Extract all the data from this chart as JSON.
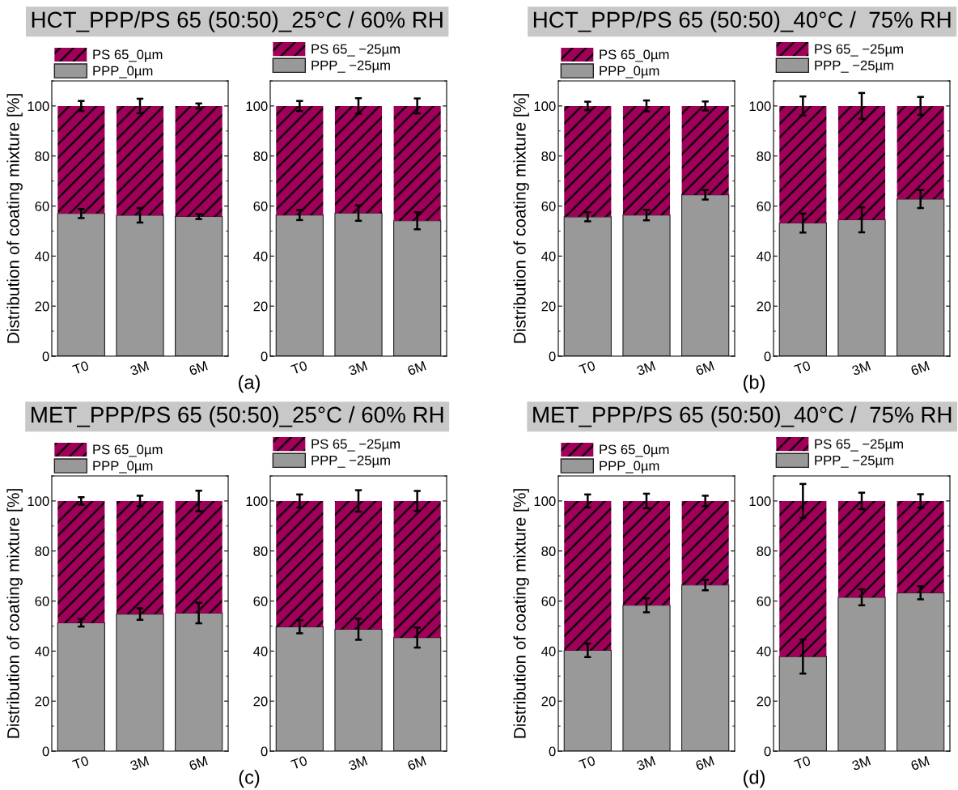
{
  "chart_data": [
    {
      "type": "bar",
      "stacked": true,
      "title": "HCT_PPP/PS 65 (50:50)_25°C / 60% RH",
      "ylabel": "Distribution of coating mixture [%]",
      "annotations": [
        "(a)"
      ],
      "categories": [
        "T0",
        "3M",
        "6M"
      ],
      "ylim": [
        0,
        110
      ],
      "yticks": [
        0,
        20,
        40,
        60,
        80,
        100
      ],
      "legend": "top left",
      "grid": false,
      "series": [
        {
          "name": "PPP_0µm",
          "color": "#999999",
          "values": [
            57,
            56.3,
            55.8
          ],
          "errors": [
            1.8,
            2.9,
            1
          ]
        },
        {
          "name": "PS 65_0µm",
          "color": "#a0005a",
          "values": [
            43,
            43.7,
            44.2
          ],
          "errors": [
            2,
            2.9,
            1
          ]
        }
      ]
    },
    {
      "type": "bar",
      "stacked": true,
      "categories": [
        "T0",
        "3M",
        "6M"
      ],
      "ylim": [
        0,
        110
      ],
      "yticks": [
        0,
        20,
        40,
        60,
        80,
        100
      ],
      "legend": "top left",
      "grid": false,
      "series": [
        {
          "name": "PPP_ −25µm",
          "color": "#999999",
          "values": [
            56.4,
            57.2,
            54.1
          ],
          "errors": [
            2,
            3.1,
            3.4
          ]
        },
        {
          "name": "PS 65_ −25µm",
          "color": "#a0005a",
          "values": [
            43.6,
            42.8,
            45.9
          ],
          "errors": [
            2,
            3.1,
            3
          ]
        }
      ]
    },
    {
      "type": "bar",
      "stacked": true,
      "title": "HCT_PPP/PS 65 (50:50)_40°C /  75% RH",
      "ylabel": "Distribution of coating mixture [%]",
      "annotations": [
        "(b)"
      ],
      "categories": [
        "T0",
        "3M",
        "6M"
      ],
      "ylim": [
        0,
        110
      ],
      "yticks": [
        0,
        20,
        40,
        60,
        80,
        100
      ],
      "legend": "top left",
      "grid": false,
      "series": [
        {
          "name": "PPP_0µm",
          "color": "#999999",
          "values": [
            55.7,
            56.4,
            64.5
          ],
          "errors": [
            1.8,
            2.1,
            1.9
          ]
        },
        {
          "name": "PS 65_0µm",
          "color": "#a0005a",
          "values": [
            44.3,
            43.6,
            35.5
          ],
          "errors": [
            1.7,
            2.2,
            1.8
          ]
        }
      ]
    },
    {
      "type": "bar",
      "stacked": true,
      "categories": [
        "T0",
        "3M",
        "6M"
      ],
      "ylim": [
        0,
        110
      ],
      "yticks": [
        0,
        20,
        40,
        60,
        80,
        100
      ],
      "legend": "top left",
      "grid": false,
      "series": [
        {
          "name": "PPP_ −25µm",
          "color": "#999999",
          "values": [
            53.2,
            54.5,
            62.8
          ],
          "errors": [
            3.8,
            5,
            3.6
          ]
        },
        {
          "name": "PS 65_ −25µm",
          "color": "#a0005a",
          "values": [
            46.8,
            45.5,
            37.2
          ],
          "errors": [
            3.8,
            5.2,
            3.6
          ]
        }
      ]
    },
    {
      "type": "bar",
      "stacked": true,
      "title": "MET_PPP/PS 65 (50:50)_25°C / 60% RH",
      "ylabel": "Distribution of coating mixture [%]",
      "annotations": [
        "(c)"
      ],
      "categories": [
        "T0",
        "3M",
        "6M"
      ],
      "ylim": [
        0,
        110
      ],
      "yticks": [
        0,
        20,
        40,
        60,
        80,
        100
      ],
      "legend": "top left",
      "grid": false,
      "series": [
        {
          "name": "PPP_0µm",
          "color": "#999999",
          "values": [
            51.3,
            54.8,
            55.2
          ],
          "errors": [
            1.5,
            2.3,
            4.1
          ]
        },
        {
          "name": "PS 65_0µm",
          "color": "#a0005a",
          "values": [
            48.7,
            45.2,
            44.8
          ],
          "errors": [
            1.5,
            2.1,
            4.1
          ]
        }
      ]
    },
    {
      "type": "bar",
      "stacked": true,
      "categories": [
        "T0",
        "3M",
        "6M"
      ],
      "ylim": [
        0,
        110
      ],
      "yticks": [
        0,
        20,
        40,
        60,
        80,
        100
      ],
      "legend": "top left",
      "grid": false,
      "series": [
        {
          "name": "PPP_ −25µm",
          "color": "#999999",
          "values": [
            49.7,
            48.7,
            45.4
          ],
          "errors": [
            2.6,
            4.2,
            4
          ]
        },
        {
          "name": "PS 65_ −25µm",
          "color": "#a0005a",
          "values": [
            50.3,
            51.3,
            54.6
          ],
          "errors": [
            2.6,
            4.3,
            4
          ]
        }
      ]
    },
    {
      "type": "bar",
      "stacked": true,
      "title": "MET_PPP/PS 65 (50:50)_40°C /  75% RH",
      "ylabel": "Distribution of coating mixture [%]",
      "annotations": [
        "(d)"
      ],
      "categories": [
        "T0",
        "3M",
        "6M"
      ],
      "ylim": [
        0,
        110
      ],
      "yticks": [
        0,
        20,
        40,
        60,
        80,
        100
      ],
      "legend": "top left",
      "grid": false,
      "series": [
        {
          "name": "PPP_0µm",
          "color": "#999999",
          "values": [
            40.3,
            58.3,
            66.4
          ],
          "errors": [
            2.7,
            2.8,
            2.1
          ]
        },
        {
          "name": "PS 65_0µm",
          "color": "#a0005a",
          "values": [
            59.7,
            41.7,
            33.6
          ],
          "errors": [
            2.6,
            2.9,
            2.1
          ]
        }
      ]
    },
    {
      "type": "bar",
      "stacked": true,
      "categories": [
        "T0",
        "3M",
        "6M"
      ],
      "ylim": [
        0,
        110
      ],
      "yticks": [
        0,
        20,
        40,
        60,
        80,
        100
      ],
      "legend": "top left",
      "grid": false,
      "series": [
        {
          "name": "PPP_ −25µm",
          "color": "#999999",
          "values": [
            37.8,
            61.5,
            63.3
          ],
          "errors": [
            6.8,
            3.2,
            2.6
          ]
        },
        {
          "name": "PS 65_ −25µm",
          "color": "#a0005a",
          "values": [
            62.2,
            38.5,
            36.7
          ],
          "errors": [
            6.8,
            3.3,
            2.7
          ]
        }
      ]
    }
  ]
}
